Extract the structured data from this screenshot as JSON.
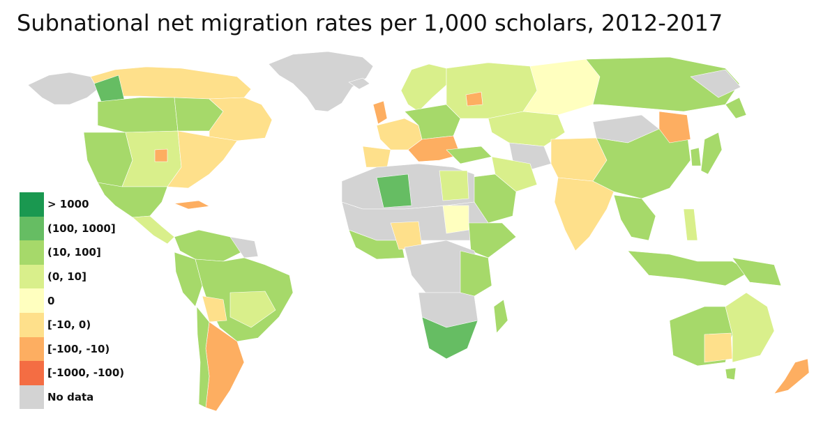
{
  "title": "Subnational net migration rates per 1,000 scholars, 2012-2017",
  "legend": [
    {
      "label": "> 1000",
      "color": "#1a9850"
    },
    {
      "label": "(100, 1000]",
      "color": "#66bd63"
    },
    {
      "label": "(10, 100]",
      "color": "#a6d96a"
    },
    {
      "label": "(0, 10]",
      "color": "#d9ef8b"
    },
    {
      "label": "0",
      "color": "#ffffbf"
    },
    {
      "label": "[-10, 0)",
      "color": "#fee08b"
    },
    {
      "label": "[-100, -10)",
      "color": "#fdae61"
    },
    {
      "label": "[-1000, -100)",
      "color": "#f46d43"
    },
    {
      "label": "No data",
      "color": "#d3d3d3"
    }
  ]
}
